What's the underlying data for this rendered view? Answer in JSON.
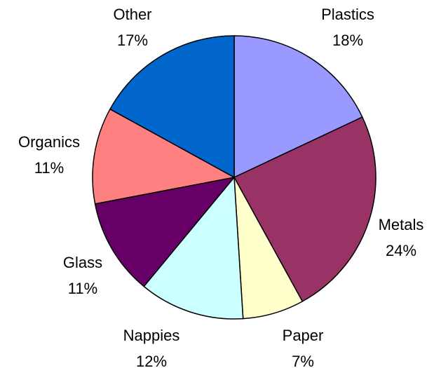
{
  "chart_data": {
    "type": "pie",
    "title": "",
    "start": "top, clockwise",
    "slices": [
      {
        "label": "Plastics",
        "value": 18,
        "value_label": "18%",
        "color": "#9999ff"
      },
      {
        "label": "Metals",
        "value": 24,
        "value_label": "24%",
        "color": "#993366"
      },
      {
        "label": "Paper",
        "value": 7,
        "value_label": "7%",
        "color": "#ffffcc"
      },
      {
        "label": "Nappies",
        "value": 12,
        "value_label": "12%",
        "color": "#ccffff"
      },
      {
        "label": "Glass",
        "value": 11,
        "value_label": "11%",
        "color": "#660066"
      },
      {
        "label": "Organics",
        "value": 11,
        "value_label": "11%",
        "color": "#ff8080"
      },
      {
        "label": "Other",
        "value": 17,
        "value_label": "17%",
        "color": "#0066cc"
      }
    ]
  }
}
